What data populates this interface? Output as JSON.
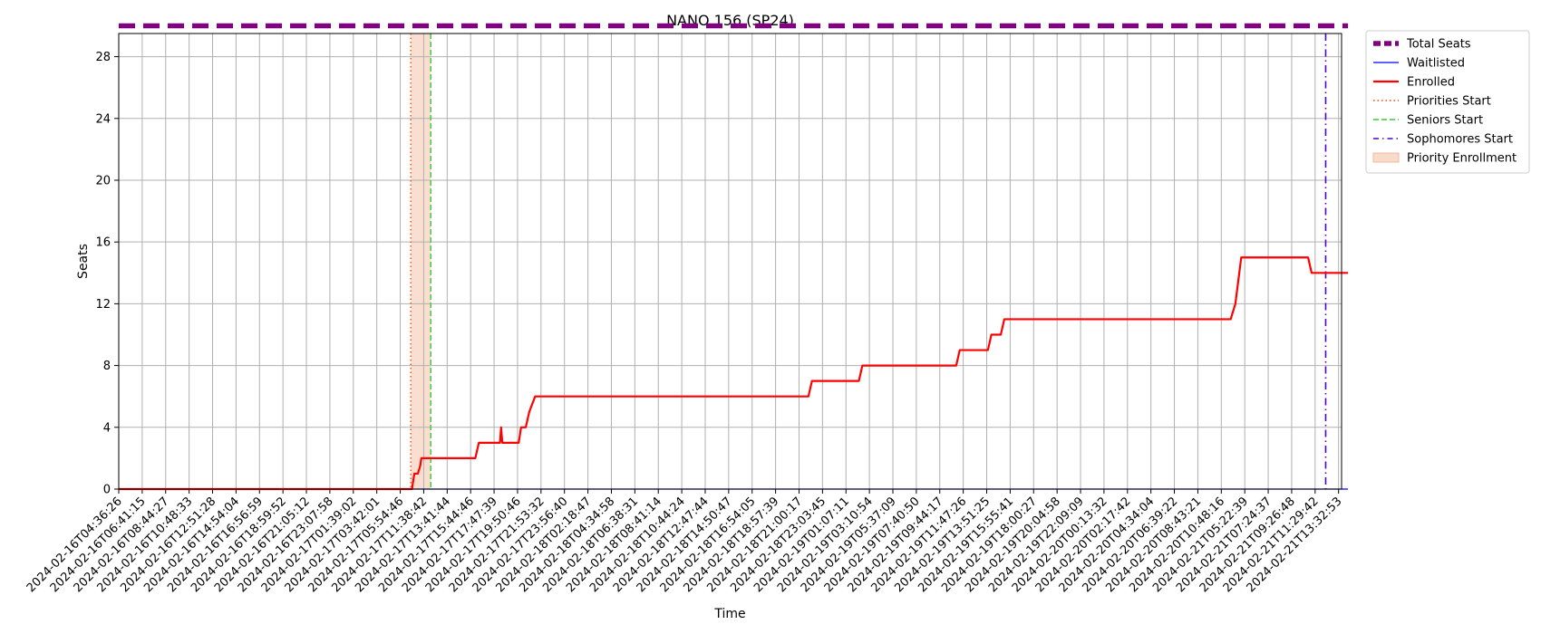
{
  "chart_data": {
    "type": "line",
    "title": "NANO 156 (SP24)",
    "xlabel": "Time",
    "ylabel": "Seats",
    "ylim": [
      0,
      29.5
    ],
    "yticks": [
      0,
      4,
      8,
      12,
      16,
      20,
      24,
      28
    ],
    "grid": true,
    "legend_position": "outside-top-right",
    "x_start": "2024-02-16T04:36:26",
    "x_end": "2024-02-21T14:33:40",
    "x_tick_labels": [
      "2024-02-16T04:36:26",
      "2024-02-16T06:41:15",
      "2024-02-16T08:44:27",
      "2024-02-16T10:48:33",
      "2024-02-16T12:51:28",
      "2024-02-16T14:54:04",
      "2024-02-16T16:56:59",
      "2024-02-16T18:59:52",
      "2024-02-16T21:05:12",
      "2024-02-16T23:07:58",
      "2024-02-17T01:39:02",
      "2024-02-17T03:42:01",
      "2024-02-17T05:54:46",
      "2024-02-17T11:38:42",
      "2024-02-17T13:41:44",
      "2024-02-17T15:44:46",
      "2024-02-17T17:47:39",
      "2024-02-17T19:50:46",
      "2024-02-17T21:53:32",
      "2024-02-17T23:56:40",
      "2024-02-18T02:18:47",
      "2024-02-18T04:34:58",
      "2024-02-18T06:38:31",
      "2024-02-18T08:41:14",
      "2024-02-18T10:44:24",
      "2024-02-18T12:47:44",
      "2024-02-18T14:50:47",
      "2024-02-18T16:54:05",
      "2024-02-18T18:57:39",
      "2024-02-18T21:00:17",
      "2024-02-18T23:03:45",
      "2024-02-19T01:07:11",
      "2024-02-19T03:10:54",
      "2024-02-19T05:37:09",
      "2024-02-19T07:40:50",
      "2024-02-19T09:44:17",
      "2024-02-19T11:47:26",
      "2024-02-19T13:51:25",
      "2024-02-19T15:55:41",
      "2024-02-19T18:00:27",
      "2024-02-19T20:04:58",
      "2024-02-19T22:09:09",
      "2024-02-20T00:13:32",
      "2024-02-20T02:17:42",
      "2024-02-20T04:34:04",
      "2024-02-20T06:39:22",
      "2024-02-20T08:43:21",
      "2024-02-20T10:48:16",
      "2024-02-21T05:22:39",
      "2024-02-21T07:24:37",
      "2024-02-21T09:26:48",
      "2024-02-21T11:29:42",
      "2024-02-21T13:32:53"
    ],
    "series": [
      {
        "name": "Total Seats",
        "color": "#800080",
        "style": "dashed-thick",
        "x_index": [
          0,
          52.4
        ],
        "y": [
          30,
          30
        ]
      },
      {
        "name": "Waitlisted",
        "color": "#0000ff",
        "style": "solid-thin",
        "x_index": [
          0,
          52.4
        ],
        "y": [
          0,
          0
        ]
      },
      {
        "name": "Enrolled",
        "color": "#ff0000",
        "style": "solid",
        "x_index": [
          0,
          12.5,
          12.6,
          12.75,
          12.85,
          12.9,
          13.0,
          13.2,
          15.2,
          15.35,
          16.25,
          16.3,
          16.35,
          16.5,
          16.55,
          17.05,
          17.15,
          17.35,
          17.5,
          17.75,
          18.1,
          29.4,
          29.55,
          31.55,
          31.7,
          35.7,
          35.85,
          37.05,
          37.2,
          37.6,
          37.75,
          47.4,
          47.6,
          47.85,
          50.7,
          50.85,
          52.4
        ],
        "y": [
          0,
          0,
          1,
          1,
          1.5,
          2,
          2,
          2,
          2,
          3,
          3,
          4,
          3,
          3,
          3,
          3,
          4,
          4,
          5,
          6,
          6,
          6,
          7,
          7,
          8,
          8,
          9,
          9,
          10,
          10,
          11,
          11,
          12,
          15,
          15,
          14,
          14
        ]
      }
    ],
    "markers": [
      {
        "name": "Priorities Start",
        "color": "#ff4500",
        "style": "dotted",
        "x_index": 12.45
      },
      {
        "name": "Seniors Start",
        "color": "#32cd32",
        "style": "dashed",
        "x_index": 13.3
      },
      {
        "name": "Sophomores Start",
        "color": "#5000d0",
        "style": "dashdot",
        "x_index": 51.45
      }
    ],
    "span": {
      "name": "Priority Enrollment",
      "color": "#f4b89a",
      "x_index": [
        12.45,
        13.3
      ]
    }
  }
}
